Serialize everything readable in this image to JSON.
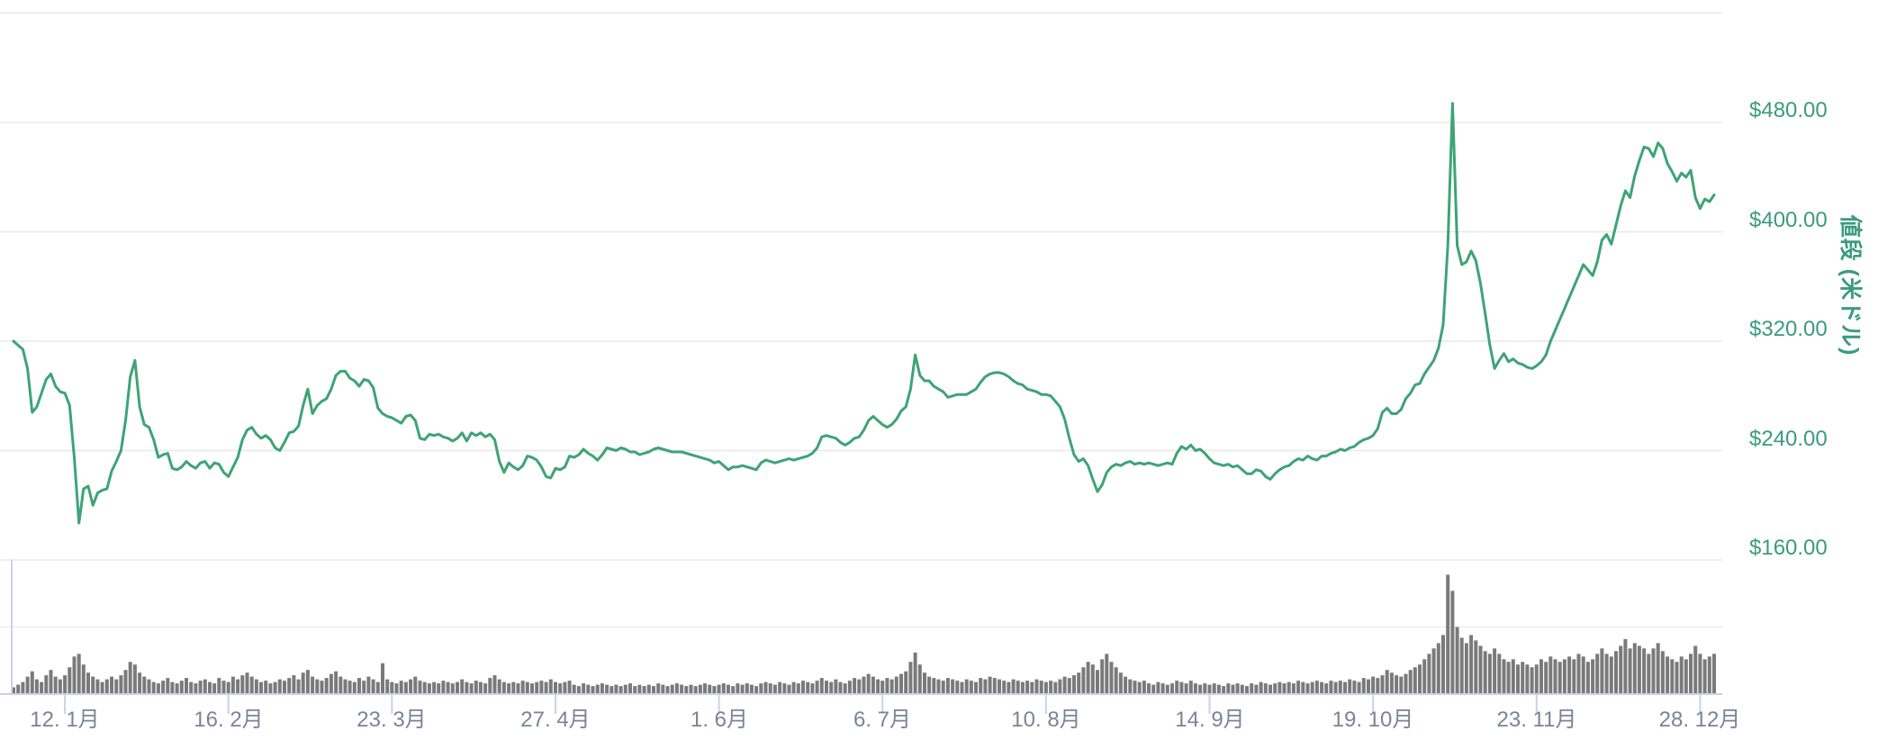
{
  "chart_data": {
    "type": "line+bar",
    "y_axis_title": "値段 (米ドル)",
    "legend": "none",
    "grid": "horizontal",
    "price_ylim": [
      160,
      560
    ],
    "volume_ylim": [
      0,
      100
    ],
    "x_range_days": [
      1,
      365
    ],
    "y_ticks": [
      {
        "value": 480,
        "label": "$480.00"
      },
      {
        "value": 400,
        "label": "$400.00"
      },
      {
        "value": 320,
        "label": "$320.00"
      },
      {
        "value": 240,
        "label": "$240.00"
      },
      {
        "value": 160,
        "label": "$160.00"
      }
    ],
    "x_ticks": [
      {
        "day_of_year": 12,
        "label": "12. 1月"
      },
      {
        "day_of_year": 47,
        "label": "16. 2月"
      },
      {
        "day_of_year": 82,
        "label": "23. 3月"
      },
      {
        "day_of_year": 117,
        "label": "27. 4月"
      },
      {
        "day_of_year": 152,
        "label": "1. 6月"
      },
      {
        "day_of_year": 187,
        "label": "6. 7月"
      },
      {
        "day_of_year": 222,
        "label": "10. 8月"
      },
      {
        "day_of_year": 257,
        "label": "14. 9月"
      },
      {
        "day_of_year": 292,
        "label": "19. 10月"
      },
      {
        "day_of_year": 327,
        "label": "23. 11月"
      },
      {
        "day_of_year": 362,
        "label": "28. 12月"
      }
    ],
    "price_series": {
      "name": "price-usd",
      "start_day": 1,
      "values": [
        320,
        317,
        314,
        300,
        268,
        272,
        282,
        292,
        296,
        287,
        283,
        282,
        273,
        235,
        187,
        212,
        214,
        200,
        209,
        211,
        212,
        225,
        232,
        240,
        262,
        294,
        306,
        272,
        259,
        257,
        248,
        235,
        237,
        238,
        227,
        226,
        228,
        232,
        229,
        227,
        231,
        232,
        227,
        231,
        230,
        224,
        221,
        228,
        235,
        248,
        255,
        257,
        252,
        249,
        251,
        248,
        242,
        240,
        246,
        253,
        254,
        258,
        273,
        285,
        267,
        273,
        276,
        278,
        285,
        295,
        298,
        298,
        293,
        291,
        287,
        292,
        291,
        286,
        271,
        267,
        265,
        264,
        262,
        260,
        265,
        266,
        262,
        249,
        248,
        252,
        251,
        252,
        250,
        249,
        247,
        249,
        253,
        247,
        253,
        251,
        253,
        250,
        252,
        248,
        232,
        224,
        231,
        228,
        226,
        229,
        236,
        235,
        233,
        228,
        221,
        220,
        227,
        226,
        228,
        236,
        235,
        237,
        241,
        238,
        236,
        233,
        237,
        242,
        241,
        240,
        242,
        241,
        239,
        239,
        237,
        238,
        239,
        241,
        242,
        241,
        240,
        239,
        239,
        239,
        238,
        237,
        236,
        235,
        234,
        233,
        231,
        232,
        229,
        226,
        228,
        228,
        229,
        228,
        227,
        226,
        231,
        233,
        232,
        231,
        232,
        233,
        234,
        233,
        234,
        235,
        236,
        238,
        242,
        250,
        251,
        250,
        249,
        246,
        244,
        246,
        249,
        250,
        255,
        262,
        265,
        262,
        259,
        257,
        259,
        263,
        269,
        272,
        285,
        310,
        295,
        291,
        291,
        287,
        285,
        283,
        279,
        280,
        281,
        281,
        281,
        283,
        285,
        290,
        294,
        296,
        297,
        297,
        296,
        294,
        291,
        289,
        288,
        285,
        284,
        283,
        281,
        281,
        280,
        276,
        272,
        263,
        249,
        237,
        232,
        234,
        229,
        219,
        210,
        215,
        224,
        228,
        230,
        229,
        231,
        232,
        230,
        231,
        230,
        231,
        230,
        229,
        230,
        231,
        230,
        238,
        243,
        241,
        244,
        240,
        241,
        238,
        234,
        231,
        230,
        229,
        230,
        228,
        229,
        226,
        223,
        223,
        226,
        225,
        221,
        219,
        223,
        226,
        228,
        229,
        232,
        234,
        233,
        236,
        234,
        233,
        236,
        236,
        238,
        239,
        241,
        240,
        242,
        243,
        246,
        248,
        249,
        251,
        256,
        268,
        271,
        267,
        267,
        270,
        278,
        282,
        288,
        289,
        296,
        301,
        306,
        315,
        332,
        390,
        494,
        390,
        376,
        378,
        386,
        379,
        362,
        340,
        317,
        300,
        306,
        311,
        305,
        307,
        304,
        303,
        301,
        300,
        302,
        305,
        310,
        320,
        328,
        336,
        344,
        352,
        360,
        368,
        376,
        372,
        368,
        378,
        394,
        398,
        391,
        405,
        419,
        430,
        425,
        441,
        452,
        462,
        461,
        455,
        465,
        461,
        450,
        444,
        437,
        443,
        440,
        445,
        425,
        417,
        424,
        422,
        427
      ]
    },
    "volume_series": {
      "name": "volume-relative",
      "start_day": 1,
      "values": [
        5,
        7,
        9,
        13,
        17,
        11,
        9,
        14,
        18,
        13,
        11,
        14,
        20,
        28,
        30,
        22,
        16,
        13,
        11,
        9,
        11,
        13,
        11,
        14,
        18,
        24,
        22,
        16,
        13,
        11,
        9,
        8,
        10,
        12,
        9,
        8,
        10,
        12,
        9,
        8,
        10,
        11,
        9,
        8,
        12,
        10,
        9,
        13,
        11,
        14,
        16,
        13,
        11,
        9,
        10,
        8,
        9,
        11,
        10,
        12,
        14,
        11,
        16,
        18,
        13,
        11,
        10,
        12,
        15,
        17,
        13,
        11,
        10,
        9,
        12,
        10,
        13,
        11,
        9,
        23,
        11,
        9,
        8,
        10,
        9,
        11,
        13,
        10,
        9,
        8,
        9,
        8,
        10,
        9,
        8,
        9,
        11,
        9,
        8,
        10,
        9,
        8,
        12,
        14,
        11,
        9,
        8,
        9,
        8,
        10,
        9,
        8,
        9,
        10,
        9,
        11,
        9,
        8,
        9,
        10,
        7,
        6,
        8,
        7,
        6,
        7,
        8,
        7,
        6,
        7,
        6,
        7,
        8,
        6,
        7,
        6,
        7,
        6,
        8,
        7,
        6,
        7,
        8,
        7,
        6,
        7,
        6,
        7,
        8,
        7,
        6,
        7,
        8,
        7,
        6,
        8,
        7,
        8,
        7,
        6,
        8,
        9,
        8,
        7,
        9,
        8,
        7,
        9,
        8,
        10,
        9,
        8,
        10,
        12,
        10,
        9,
        11,
        9,
        8,
        10,
        12,
        11,
        13,
        15,
        13,
        11,
        10,
        12,
        11,
        13,
        15,
        17,
        24,
        31,
        22,
        16,
        13,
        12,
        11,
        10,
        12,
        11,
        10,
        9,
        11,
        10,
        9,
        12,
        11,
        13,
        12,
        11,
        10,
        9,
        11,
        10,
        9,
        10,
        9,
        11,
        10,
        9,
        10,
        9,
        11,
        13,
        12,
        14,
        16,
        20,
        24,
        22,
        18,
        26,
        30,
        24,
        20,
        16,
        13,
        11,
        10,
        9,
        10,
        8,
        7,
        9,
        8,
        7,
        8,
        10,
        9,
        8,
        10,
        8,
        7,
        8,
        7,
        8,
        7,
        6,
        8,
        7,
        8,
        7,
        6,
        8,
        7,
        9,
        8,
        7,
        8,
        9,
        8,
        9,
        8,
        10,
        9,
        8,
        9,
        10,
        9,
        8,
        10,
        9,
        10,
        9,
        11,
        10,
        9,
        12,
        11,
        13,
        12,
        14,
        18,
        16,
        14,
        13,
        15,
        18,
        20,
        22,
        26,
        30,
        34,
        38,
        44,
        89,
        77,
        50,
        42,
        38,
        44,
        40,
        36,
        32,
        30,
        34,
        30,
        26,
        24,
        26,
        22,
        24,
        22,
        20,
        22,
        26,
        24,
        28,
        26,
        24,
        26,
        28,
        26,
        30,
        28,
        24,
        26,
        30,
        34,
        30,
        28,
        32,
        36,
        41,
        34,
        38,
        36,
        34,
        30,
        34,
        38,
        32,
        28,
        26,
        24,
        28,
        26,
        30,
        36,
        30,
        26,
        28,
        30
      ]
    },
    "colors": {
      "price_line": "#3ea376",
      "y_label": "#3a9b7d",
      "x_label": "#7b8496",
      "gridline": "#e8e8e8",
      "gridline_light": "#ededed",
      "volume_bar": "#7a7a7a",
      "axis_line": "#c9d2e8"
    }
  }
}
